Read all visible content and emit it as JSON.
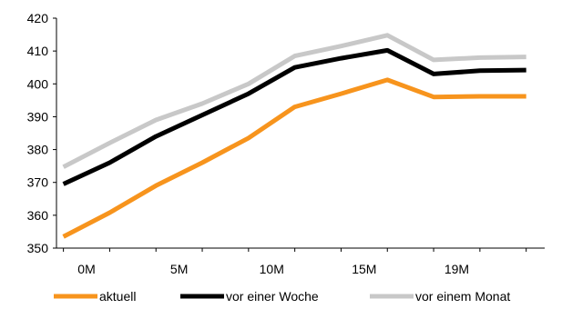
{
  "chart_data": {
    "type": "line",
    "title": "",
    "xlabel": "",
    "ylabel": "",
    "ylim": [
      350,
      420
    ],
    "y_ticks": [
      350,
      360,
      370,
      380,
      390,
      400,
      410,
      420
    ],
    "x": [
      0,
      1,
      2,
      3,
      4,
      5,
      6,
      7,
      8,
      9,
      10
    ],
    "x_tick_labels": [
      "0M",
      "5M",
      "10M",
      "15M",
      "19M"
    ],
    "x_tick_positions": [
      0.5,
      2.5,
      4.5,
      6.5,
      8.5
    ],
    "grid": false,
    "legend_position": "bottom",
    "series": [
      {
        "name": "aktuell",
        "color": "#F7941D",
        "values": [
          353.5,
          360.8,
          369.0,
          376.0,
          383.5,
          393.0,
          397.0,
          401.2,
          396.0,
          396.2,
          396.2
        ]
      },
      {
        "name": "vor einer Woche",
        "color": "#000000",
        "values": [
          369.5,
          376.0,
          384.0,
          390.5,
          397.0,
          405.0,
          407.8,
          410.2,
          403.0,
          404.0,
          404.2
        ]
      },
      {
        "name": "vor einem Monat",
        "color": "#C8C8C8",
        "values": [
          374.7,
          382.0,
          389.0,
          394.0,
          400.0,
          408.5,
          411.5,
          414.8,
          407.3,
          408.0,
          408.2
        ]
      }
    ]
  }
}
